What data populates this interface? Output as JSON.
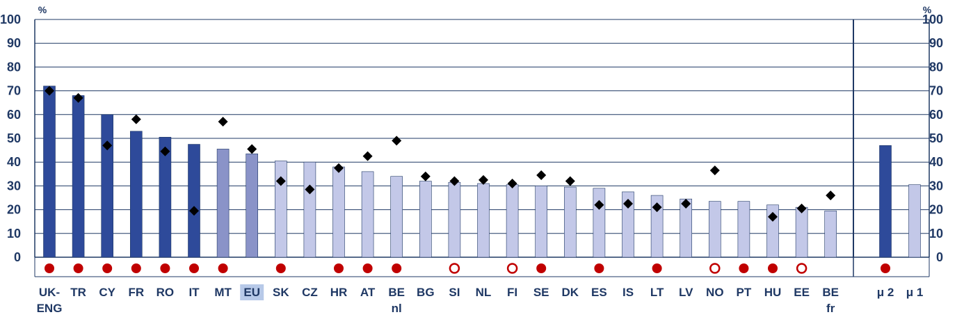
{
  "chart_data": {
    "type": "bar",
    "unit_left": "%",
    "unit_right": "%",
    "ylim": [
      0,
      100
    ],
    "yticks": [
      0,
      10,
      20,
      30,
      40,
      50,
      60,
      70,
      80,
      90,
      100
    ],
    "grid": true,
    "colors": {
      "dark": "#2e4a9a",
      "medium": "#8a93c8",
      "light": "#c3c8e8",
      "eu_highlight": "#b7c9e8",
      "marker": "#000000",
      "circle": "#c00000",
      "text": "#1f3864"
    },
    "categories": [
      {
        "label": [
          "UK-",
          "ENG"
        ],
        "value": 72,
        "marker": 70,
        "shade": "dark",
        "circle": "filled"
      },
      {
        "label": [
          "TR"
        ],
        "value": 68,
        "marker": 67,
        "shade": "dark",
        "circle": "filled"
      },
      {
        "label": [
          "CY"
        ],
        "value": 60,
        "marker": 47,
        "shade": "dark",
        "circle": "filled"
      },
      {
        "label": [
          "FR"
        ],
        "value": 53,
        "marker": 58,
        "shade": "dark",
        "circle": "filled"
      },
      {
        "label": [
          "RO"
        ],
        "value": 50.5,
        "marker": 44.5,
        "shade": "dark",
        "circle": "filled"
      },
      {
        "label": [
          "IT"
        ],
        "value": 47.5,
        "marker": 19.5,
        "shade": "dark",
        "circle": "filled"
      },
      {
        "label": [
          "MT"
        ],
        "value": 45.5,
        "marker": 57,
        "shade": "medium",
        "circle": "filled"
      },
      {
        "label": [
          "EU"
        ],
        "value": 43.5,
        "marker": 45.5,
        "shade": "medium",
        "circle": "none",
        "highlight": true
      },
      {
        "label": [
          "SK"
        ],
        "value": 40.5,
        "marker": 32,
        "shade": "light",
        "circle": "filled"
      },
      {
        "label": [
          "CZ"
        ],
        "value": 40,
        "marker": 28.5,
        "shade": "light",
        "circle": "none"
      },
      {
        "label": [
          "HR"
        ],
        "value": 38,
        "marker": 37.5,
        "shade": "light",
        "circle": "filled"
      },
      {
        "label": [
          "AT"
        ],
        "value": 36,
        "marker": 42.5,
        "shade": "light",
        "circle": "filled"
      },
      {
        "label": [
          "BE",
          "nl"
        ],
        "value": 34,
        "marker": 49,
        "shade": "light",
        "circle": "filled"
      },
      {
        "label": [
          "BG"
        ],
        "value": 32,
        "marker": 34,
        "shade": "light",
        "circle": "none"
      },
      {
        "label": [
          "SI"
        ],
        "value": 31.5,
        "marker": 32,
        "shade": "light",
        "circle": "open"
      },
      {
        "label": [
          "NL"
        ],
        "value": 31,
        "marker": 32.5,
        "shade": "light",
        "circle": "none"
      },
      {
        "label": [
          "FI"
        ],
        "value": 30.5,
        "marker": 31,
        "shade": "light",
        "circle": "open"
      },
      {
        "label": [
          "SE"
        ],
        "value": 30,
        "marker": 34.5,
        "shade": "light",
        "circle": "filled"
      },
      {
        "label": [
          "DK"
        ],
        "value": 29.5,
        "marker": 32,
        "shade": "light",
        "circle": "none"
      },
      {
        "label": [
          "ES"
        ],
        "value": 29,
        "marker": 22,
        "shade": "light",
        "circle": "filled"
      },
      {
        "label": [
          "IS"
        ],
        "value": 27.5,
        "marker": 22.5,
        "shade": "light",
        "circle": "none"
      },
      {
        "label": [
          "LT"
        ],
        "value": 26,
        "marker": 21,
        "shade": "light",
        "circle": "filled"
      },
      {
        "label": [
          "LV"
        ],
        "value": 24.5,
        "marker": 22.5,
        "shade": "light",
        "circle": "none"
      },
      {
        "label": [
          "NO"
        ],
        "value": 23.5,
        "marker": 36.5,
        "shade": "light",
        "circle": "open"
      },
      {
        "label": [
          "PT"
        ],
        "value": 23.5,
        "marker": null,
        "shade": "light",
        "circle": "filled"
      },
      {
        "label": [
          "HU"
        ],
        "value": 22,
        "marker": 17,
        "shade": "light",
        "circle": "filled"
      },
      {
        "label": [
          "EE"
        ],
        "value": 21,
        "marker": 20.5,
        "shade": "light",
        "circle": "open"
      },
      {
        "label": [
          "BE",
          "fr"
        ],
        "value": 19.5,
        "marker": 26,
        "shade": "light",
        "circle": "none"
      }
    ],
    "summary": [
      {
        "label": [
          "μ 2"
        ],
        "value": 47,
        "shade": "dark",
        "circle": "filled"
      },
      {
        "label": [
          "μ 1"
        ],
        "value": 30.5,
        "shade": "light",
        "circle": "none"
      }
    ]
  }
}
